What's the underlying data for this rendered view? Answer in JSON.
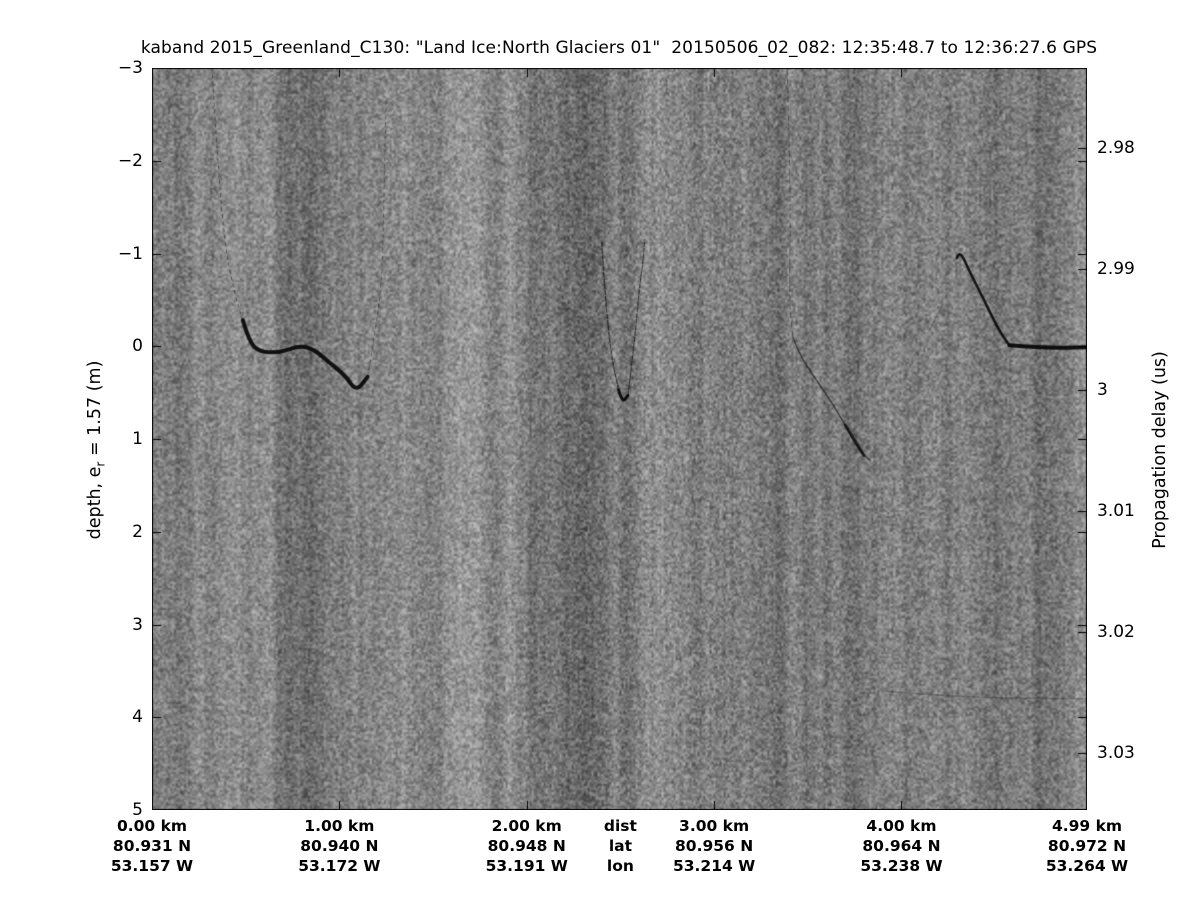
{
  "figure": {
    "title": "kaband 2015_Greenland_C130: \"Land Ice:North Glaciers 01\"  20150506_02_082: 12:35:48.7 to 12:36:27.6 GPS",
    "left_axis": {
      "label_pre": "depth, e",
      "label_sub": "r",
      "label_post": " = 1.57 (m)",
      "tick_labels": [
        "−3",
        "−2",
        "−1",
        "0",
        "1",
        "2",
        "3",
        "4",
        "5"
      ]
    },
    "right_axis": {
      "label": "Propagation delay (us)",
      "tick_labels": [
        "2.98",
        "2.99",
        "3",
        "3.01",
        "3.02",
        "3.03"
      ]
    },
    "bottom_axis": {
      "row_headers": [
        "dist",
        "lat",
        "lon"
      ],
      "header_km": 2.5,
      "columns": [
        {
          "km": 0,
          "dist": "0.00 km",
          "lat": "80.931 N",
          "lon": "53.157 W"
        },
        {
          "km": 1,
          "dist": "1.00 km",
          "lat": "80.940 N",
          "lon": "53.172 W"
        },
        {
          "km": 2,
          "dist": "2.00 km",
          "lat": "80.948 N",
          "lon": "53.191 W"
        },
        {
          "km": 3,
          "dist": "3.00 km",
          "lat": "80.956 N",
          "lon": "53.214 W"
        },
        {
          "km": 4,
          "dist": "4.00 km",
          "lat": "80.964 N",
          "lon": "53.238 W"
        },
        {
          "km": 4.99,
          "dist": "4.99 km",
          "lat": "80.972 N",
          "lon": "53.264 W"
        }
      ]
    }
  },
  "chart_data": {
    "type": "heatmap",
    "title": "kaband 2015_Greenland_C130: \"Land Ice:North Glaciers 01\"  20150506_02_082: 12:35:48.7 to 12:36:27.6 GPS",
    "ylabel_left": "depth, e_r = 1.57 (m)",
    "ylabel_right": "Propagation delay (us)",
    "xlabel_rows": [
      "dist",
      "lat",
      "lon"
    ],
    "x_range_km": [
      0,
      4.99
    ],
    "depth_range_m": [
      -3,
      5
    ],
    "depth_ticks_m": [
      -3,
      -2,
      -1,
      0,
      1,
      2,
      3,
      4,
      5
    ],
    "distance_ticks_km": [
      0,
      1,
      2,
      3,
      4,
      4.99
    ],
    "delay_ticks_us": [
      2.98,
      2.99,
      3,
      3.01,
      3.02,
      3.03
    ],
    "delay_axis": {
      "depth_at_3us": 0.47,
      "m_per_us": 130.5
    },
    "noise": {
      "mean_gray": 127,
      "contrast": 52,
      "streak_strength": 16
    },
    "features": [
      {
        "name": "surface-valley-left-descent",
        "width": 1,
        "alpha": 0.5,
        "dash": [
          3,
          4
        ],
        "points": [
          [
            0.32,
            -3.0
          ],
          [
            0.35,
            -2.0
          ],
          [
            0.39,
            -1.07
          ],
          [
            0.44,
            -0.57
          ],
          [
            0.485,
            -0.28
          ]
        ]
      },
      {
        "name": "surface-valley-floor",
        "width": 4,
        "alpha": 0.92,
        "dash": null,
        "points": [
          [
            0.485,
            -0.28
          ],
          [
            0.52,
            -0.04
          ],
          [
            0.576,
            0.06
          ],
          [
            0.68,
            0.07
          ],
          [
            0.79,
            -0.01
          ],
          [
            0.87,
            0.04
          ],
          [
            0.93,
            0.15
          ],
          [
            1.03,
            0.31
          ],
          [
            1.09,
            0.49
          ],
          [
            1.15,
            0.33
          ]
        ]
      },
      {
        "name": "surface-valley-right-ascent",
        "width": 1,
        "alpha": 0.45,
        "dash": [
          3,
          4
        ],
        "points": [
          [
            1.15,
            0.33
          ],
          [
            1.2,
            -0.25
          ],
          [
            1.23,
            -0.79
          ],
          [
            1.24,
            -1.87
          ],
          [
            1.25,
            -2.65
          ]
        ]
      },
      {
        "name": "narrow-v-upper-trace",
        "width": 0.8,
        "alpha": 0.3,
        "dash": [
          2,
          5
        ],
        "points": [
          [
            2.42,
            -2.7
          ],
          [
            2.4,
            -1.12
          ]
        ]
      },
      {
        "name": "narrow-v-left-branch",
        "width": 1.2,
        "alpha": 0.7,
        "dash": [
          4,
          2
        ],
        "points": [
          [
            2.4,
            -1.12
          ],
          [
            2.42,
            -0.5
          ],
          [
            2.45,
            0.09
          ],
          [
            2.49,
            0.47
          ]
        ]
      },
      {
        "name": "narrow-v-bottom",
        "width": 3,
        "alpha": 0.95,
        "dash": null,
        "points": [
          [
            2.49,
            0.47
          ],
          [
            2.51,
            0.61
          ],
          [
            2.54,
            0.53
          ]
        ]
      },
      {
        "name": "narrow-v-right-branch",
        "width": 1.2,
        "alpha": 0.65,
        "dash": [
          4,
          2
        ],
        "points": [
          [
            2.54,
            0.53
          ],
          [
            2.576,
            -0.06
          ],
          [
            2.6,
            -0.61
          ],
          [
            2.62,
            -0.9
          ],
          [
            2.63,
            -1.15
          ]
        ]
      },
      {
        "name": "dipping-trace-vertical",
        "width": 1,
        "alpha": 0.45,
        "dash": [
          5,
          4
        ],
        "points": [
          [
            3.39,
            -2.98
          ],
          [
            3.41,
            -1.58
          ],
          [
            3.4,
            -0.5
          ],
          [
            3.42,
            -0.1
          ]
        ]
      },
      {
        "name": "dipping-trace-diagonal",
        "width": 1.5,
        "alpha": 0.6,
        "dash": null,
        "points": [
          [
            3.42,
            -0.1
          ],
          [
            3.456,
            0.09
          ],
          [
            3.536,
            0.34
          ],
          [
            3.62,
            0.58
          ],
          [
            3.7,
            0.85
          ],
          [
            3.765,
            1.1
          ],
          [
            3.83,
            1.23
          ]
        ]
      },
      {
        "name": "dipping-trace-thick-end",
        "width": 3,
        "alpha": 0.75,
        "dash": null,
        "points": [
          [
            3.7,
            0.85
          ],
          [
            3.77,
            1.08
          ],
          [
            3.8,
            1.18
          ]
        ]
      },
      {
        "name": "dipping-trace-faint-tail",
        "width": 1,
        "alpha": 0.22,
        "dash": [
          3,
          5
        ],
        "points": [
          [
            3.85,
            1.45
          ],
          [
            3.9,
            2.1
          ],
          [
            3.93,
            2.8
          ]
        ]
      },
      {
        "name": "right-surface-faint-tail",
        "width": 1,
        "alpha": 0.35,
        "dash": null,
        "points": [
          [
            4.15,
            -0.18
          ],
          [
            4.22,
            -0.45
          ]
        ]
      },
      {
        "name": "right-surface-peak-descent",
        "width": 2.6,
        "alpha": 0.9,
        "dash": null,
        "points": [
          [
            4.295,
            -0.95
          ],
          [
            4.31,
            -1.04
          ],
          [
            4.36,
            -0.82
          ],
          [
            4.44,
            -0.5
          ],
          [
            4.52,
            -0.17
          ],
          [
            4.576,
            -0.01
          ]
        ]
      },
      {
        "name": "right-surface-flat",
        "width": 4,
        "alpha": 0.95,
        "dash": null,
        "points": [
          [
            4.576,
            -0.01
          ],
          [
            4.75,
            0.02
          ],
          [
            4.99,
            0.01
          ]
        ]
      },
      {
        "name": "faint-deep-horizontal",
        "width": 1.5,
        "alpha": 0.25,
        "dash": null,
        "points": [
          [
            3.92,
            3.72
          ],
          [
            4.3,
            3.79
          ],
          [
            4.99,
            3.8
          ]
        ]
      },
      {
        "name": "faint-vertical-band",
        "width": 2,
        "alpha": 0.1,
        "dash": null,
        "points": [
          [
            2.02,
            -3
          ],
          [
            2.02,
            5
          ]
        ]
      },
      {
        "name": "faint-vertical-band-2",
        "width": 2,
        "alpha": 0.08,
        "dash": null,
        "points": [
          [
            3.47,
            1.4
          ],
          [
            3.5,
            5
          ]
        ]
      }
    ]
  }
}
